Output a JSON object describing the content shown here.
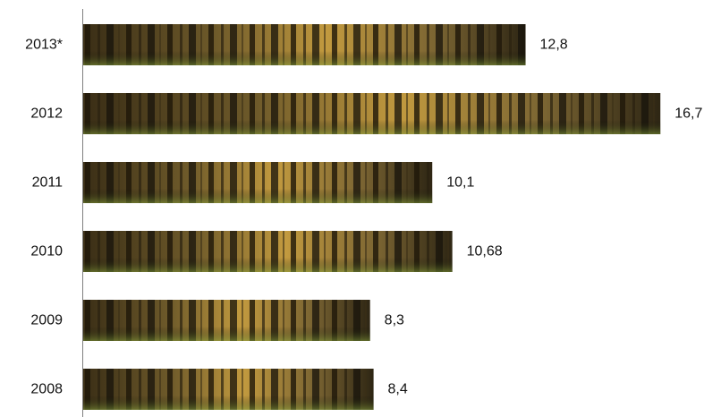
{
  "chart_data": {
    "type": "bar",
    "orientation": "horizontal",
    "categories": [
      "2013*",
      "2012",
      "2011",
      "2010",
      "2009",
      "2008"
    ],
    "values": [
      12.8,
      16.7,
      10.1,
      10.68,
      8.3,
      8.4
    ],
    "value_labels": [
      "12,8",
      "16,7",
      "10,1",
      "10,68",
      "8,3",
      "8,4"
    ],
    "title": "",
    "xlabel": "",
    "ylabel": "",
    "xlim": [
      0,
      17.6
    ],
    "grid": false,
    "legend": "none",
    "bar_fill": "forest-photo-texture",
    "colors": {
      "axis": "#7f7f7f",
      "bar_dark": "#2a2110",
      "bar_mid": "#6b5a2c",
      "bar_light": "#c9a13c",
      "foliage": "#7f9a3a"
    }
  }
}
